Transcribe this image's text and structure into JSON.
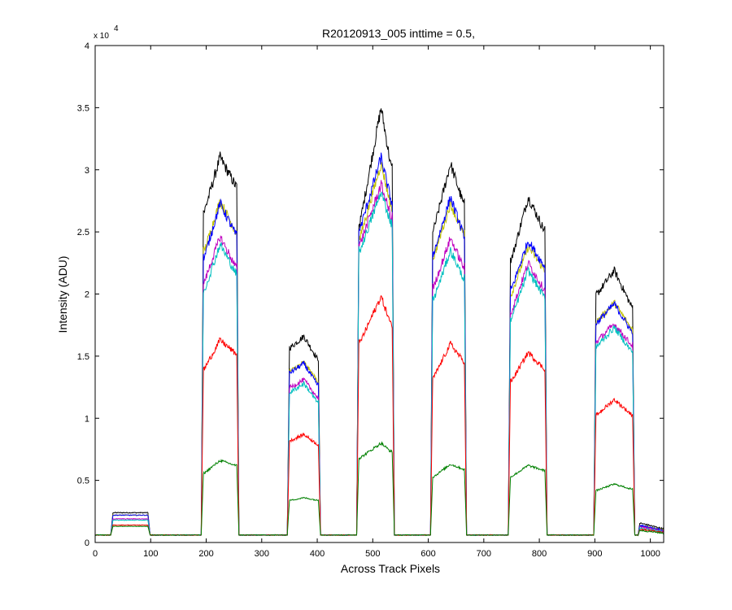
{
  "chart_data": {
    "type": "line",
    "title": "R20120913_005 inttime = 0.5,",
    "xlabel": "Across Track Pixels",
    "ylabel": "Intensity (ADU)",
    "xlim": [
      0,
      1024
    ],
    "ylim": [
      0,
      40000
    ],
    "x_ticks": [
      0,
      100,
      200,
      300,
      400,
      500,
      600,
      700,
      800,
      900,
      1000
    ],
    "x_tick_labels": [
      "0",
      "100",
      "200",
      "300",
      "400",
      "500",
      "600",
      "700",
      "800",
      "900",
      "1000"
    ],
    "y_ticks": [
      0,
      5000,
      10000,
      15000,
      20000,
      25000,
      30000,
      35000,
      40000
    ],
    "y_tick_labels": [
      "0",
      "0.5",
      "1",
      "1.5",
      "2",
      "2.5",
      "3",
      "3.5",
      "4"
    ],
    "y_exponent_base": "x 10",
    "y_exponent_power": "4",
    "grid": false,
    "baseline": 600,
    "segments": [
      {
        "start": 32,
        "end": 95,
        "ramp": 4
      },
      {
        "start": 195,
        "end": 255,
        "ramp": 4
      },
      {
        "start": 350,
        "end": 402,
        "ramp": 4
      },
      {
        "start": 475,
        "end": 535,
        "ramp": 4
      },
      {
        "start": 608,
        "end": 665,
        "ramp": 4
      },
      {
        "start": 748,
        "end": 810,
        "ramp": 4
      },
      {
        "start": 902,
        "end": 968,
        "ramp": 4
      }
    ],
    "tail": {
      "start": 978,
      "end": 1024
    },
    "series": [
      {
        "color": "#000000",
        "profiles": [
          {
            "x": [
              32,
              95
            ],
            "y": [
              2400,
              2400
            ]
          },
          {
            "x": [
              197,
              225,
              253
            ],
            "y": [
              26700,
              31000,
              28700
            ]
          },
          {
            "x": [
              352,
              376,
              400
            ],
            "y": [
              15700,
              16600,
              14800
            ]
          },
          {
            "x": [
              477,
              515,
              533
            ],
            "y": [
              25700,
              35000,
              30200
            ]
          },
          {
            "x": [
              610,
              640,
              663
            ],
            "y": [
              25200,
              30500,
              27300
            ]
          },
          {
            "x": [
              750,
              780,
              808
            ],
            "y": [
              22800,
              27800,
              25200
            ]
          },
          {
            "x": [
              904,
              935,
              966
            ],
            "y": [
              20000,
              21900,
              19000
            ]
          }
        ],
        "tail": [
          1600,
          1100
        ]
      },
      {
        "color": "#bfbf00",
        "profiles": [
          {
            "x": [
              32,
              95
            ],
            "y": [
              2200,
              2200
            ]
          },
          {
            "x": [
              197,
              225,
              253
            ],
            "y": [
              23500,
              27500,
              25000
            ]
          },
          {
            "x": [
              352,
              376,
              400
            ],
            "y": [
              13800,
              14500,
              13000
            ]
          },
          {
            "x": [
              477,
              515,
              533
            ],
            "y": [
              24500,
              30500,
              27000
            ]
          },
          {
            "x": [
              610,
              640,
              663
            ],
            "y": [
              23000,
              27300,
              24800
            ]
          },
          {
            "x": [
              750,
              780,
              808
            ],
            "y": [
              20000,
              23800,
              22000
            ]
          },
          {
            "x": [
              904,
              935,
              966
            ],
            "y": [
              17800,
              19300,
              17200
            ]
          }
        ],
        "tail": [
          1400,
          1000
        ]
      },
      {
        "color": "#0000ff",
        "profiles": [
          {
            "x": [
              32,
              95
            ],
            "y": [
              2200,
              2200
            ]
          },
          {
            "x": [
              197,
              225,
              253
            ],
            "y": [
              23000,
              27300,
              24800
            ]
          },
          {
            "x": [
              352,
              376,
              400
            ],
            "y": [
              13700,
              14400,
              12700
            ]
          },
          {
            "x": [
              477,
              515,
              533
            ],
            "y": [
              25200,
              31000,
              27500
            ]
          },
          {
            "x": [
              610,
              640,
              663
            ],
            "y": [
              23300,
              27800,
              24800
            ]
          },
          {
            "x": [
              750,
              780,
              808
            ],
            "y": [
              20400,
              24300,
              22300
            ]
          },
          {
            "x": [
              904,
              935,
              966
            ],
            "y": [
              17700,
              19200,
              17000
            ]
          }
        ],
        "tail": [
          1400,
          1000
        ]
      },
      {
        "color": "#bf00bf",
        "profiles": [
          {
            "x": [
              32,
              95
            ],
            "y": [
              1900,
              1900
            ]
          },
          {
            "x": [
              197,
              225,
              253
            ],
            "y": [
              21000,
              24600,
              22200
            ]
          },
          {
            "x": [
              352,
              376,
              400
            ],
            "y": [
              12500,
              13100,
              11700
            ]
          },
          {
            "x": [
              477,
              515,
              533
            ],
            "y": [
              24000,
              28800,
              26200
            ]
          },
          {
            "x": [
              610,
              640,
              663
            ],
            "y": [
              20600,
              24500,
              22200
            ]
          },
          {
            "x": [
              750,
              780,
              808
            ],
            "y": [
              18600,
              22500,
              20400
            ]
          },
          {
            "x": [
              904,
              935,
              966
            ],
            "y": [
              16200,
              17600,
              15900
            ]
          }
        ],
        "tail": [
          1300,
          900
        ]
      },
      {
        "color": "#00bfbf",
        "profiles": [
          {
            "x": [
              32,
              95
            ],
            "y": [
              1800,
              1800
            ]
          },
          {
            "x": [
              197,
              225,
              253
            ],
            "y": [
              20300,
              24000,
              21700
            ]
          },
          {
            "x": [
              352,
              376,
              400
            ],
            "y": [
              12100,
              12800,
              11300
            ]
          },
          {
            "x": [
              477,
              515,
              533
            ],
            "y": [
              23500,
              28200,
              25700
            ]
          },
          {
            "x": [
              610,
              640,
              663
            ],
            "y": [
              19600,
              23500,
              21300
            ]
          },
          {
            "x": [
              750,
              780,
              808
            ],
            "y": [
              18000,
              21900,
              19800
            ]
          },
          {
            "x": [
              904,
              935,
              966
            ],
            "y": [
              15800,
              17300,
              15400
            ]
          }
        ],
        "tail": [
          1200,
          850
        ]
      },
      {
        "color": "#ff0000",
        "profiles": [
          {
            "x": [
              32,
              95
            ],
            "y": [
              1400,
              1400
            ]
          },
          {
            "x": [
              197,
              225,
              253
            ],
            "y": [
              14000,
              16300,
              15200
            ]
          },
          {
            "x": [
              352,
              376,
              400
            ],
            "y": [
              8200,
              8700,
              7900
            ]
          },
          {
            "x": [
              477,
              515,
              533
            ],
            "y": [
              16100,
              19800,
              17500
            ]
          },
          {
            "x": [
              610,
              640,
              663
            ],
            "y": [
              13300,
              16000,
              14600
            ]
          },
          {
            "x": [
              750,
              780,
              808
            ],
            "y": [
              13000,
              15300,
              14000
            ]
          },
          {
            "x": [
              904,
              935,
              966
            ],
            "y": [
              10300,
              11500,
              10300
            ]
          }
        ],
        "tail": [
          1100,
          800
        ]
      },
      {
        "color": "#008000",
        "profiles": [
          {
            "x": [
              32,
              95
            ],
            "y": [
              1300,
              1300
            ]
          },
          {
            "x": [
              197,
              225,
              253
            ],
            "y": [
              5600,
              6600,
              6200
            ]
          },
          {
            "x": [
              352,
              376,
              400
            ],
            "y": [
              3400,
              3600,
              3400
            ]
          },
          {
            "x": [
              477,
              515,
              533
            ],
            "y": [
              6800,
              8000,
              7300
            ]
          },
          {
            "x": [
              610,
              640,
              663
            ],
            "y": [
              5300,
              6300,
              5900
            ]
          },
          {
            "x": [
              750,
              780,
              808
            ],
            "y": [
              5300,
              6200,
              5800
            ]
          },
          {
            "x": [
              904,
              935,
              966
            ],
            "y": [
              4200,
              4700,
              4300
            ]
          }
        ],
        "tail": [
          1000,
          750
        ]
      }
    ]
  }
}
